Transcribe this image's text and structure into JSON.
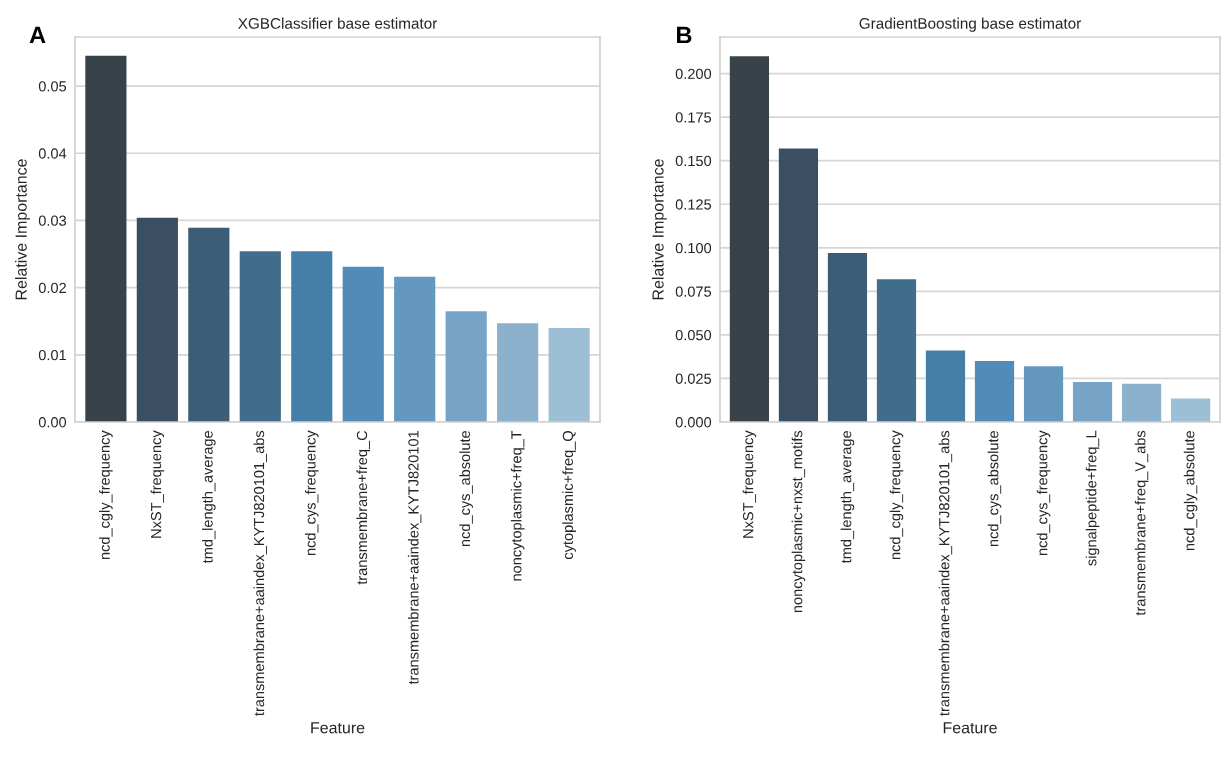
{
  "chart_data": [
    {
      "type": "bar",
      "title": "XGBClassifier base estimator",
      "xlabel": "Feature",
      "ylabel": "Relative Importance",
      "annotations": [
        "A"
      ],
      "categories": [
        "ncd_cgly_frequency",
        "NxST_frequency",
        "tmd_length_average",
        "transmembrane+aaindex_KYTJ820101_abs",
        "ncd_cys_frequency",
        "transmembrane+freq_C",
        "transmembrane+aaindex_KYTJ820101",
        "ncd_cys_absolute",
        "noncytoplasmic+freq_T",
        "cytoplasmic+freq_Q"
      ],
      "values": [
        0.0545,
        0.0304,
        0.0289,
        0.0254,
        0.0254,
        0.0231,
        0.0216,
        0.0165,
        0.0147,
        0.014
      ],
      "colors": [
        "#374249",
        "#3a4f61",
        "#3d5d76",
        "#416d8d",
        "#457ea6",
        "#528bb7",
        "#6598bf",
        "#77a4c6",
        "#8bb1cd",
        "#9dbfd5"
      ],
      "ylim": [
        0,
        0.0573
      ],
      "yticks": [
        {
          "value": 0,
          "label": "0.00"
        },
        0.01,
        0.02,
        0.03,
        0.04,
        0.05
      ],
      "grid": "y"
    },
    {
      "type": "bar",
      "title": "GradientBoosting base estimator",
      "xlabel": "Feature",
      "ylabel": "Relative Importance",
      "annotations": [
        "B"
      ],
      "categories": [
        "NxST_frequency",
        "noncytoplasmic+nxst_motifs",
        "tmd_length_average",
        "ncd_cgly_frequency",
        "transmembrane+aaindex_KYTJ820101_abs",
        "ncd_cys_absolute",
        "ncd_cys_frequency",
        "signalpeptide+freq_L",
        "transmembrane+freq_V_abs",
        "ncd_cgly_absolute"
      ],
      "values": [
        0.21,
        0.157,
        0.097,
        0.082,
        0.041,
        0.035,
        0.032,
        0.023,
        0.022,
        0.0135
      ],
      "colors": [
        "#374249",
        "#3a4f61",
        "#3d5d76",
        "#416d8d",
        "#457ea6",
        "#528bb7",
        "#6598bf",
        "#77a4c6",
        "#8bb1cd",
        "#9dbfd5"
      ],
      "ylim": [
        0,
        0.221
      ],
      "yticks": [
        {
          "value": 0,
          "label": "0.000"
        },
        {
          "value": 0.025,
          "label": "0.025"
        },
        {
          "value": 0.05,
          "label": "0.050"
        },
        {
          "value": 0.075,
          "label": "0.075"
        },
        {
          "value": 0.1,
          "label": "0.100"
        },
        {
          "value": 0.125,
          "label": "0.125"
        },
        {
          "value": 0.15,
          "label": "0.150"
        },
        {
          "value": 0.175,
          "label": "0.175"
        },
        {
          "value": 0.2,
          "label": "0.200"
        }
      ],
      "grid": "y"
    }
  ]
}
